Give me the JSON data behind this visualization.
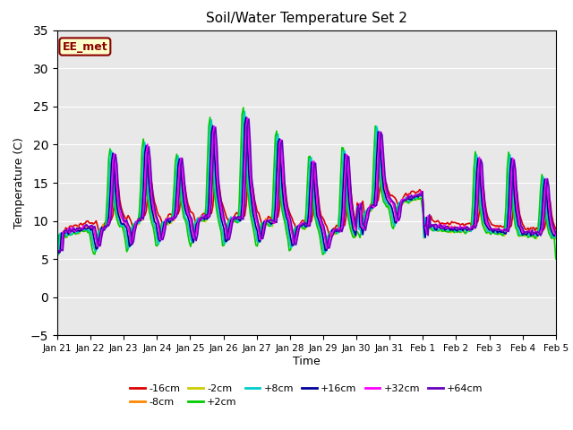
{
  "title": "Soil/Water Temperature Set 2",
  "xlabel": "Time",
  "ylabel": "Temperature (C)",
  "ylim": [
    -5,
    35
  ],
  "bg_color": "#e8e8e8",
  "annotation_text": "EE_met",
  "annotation_fc": "#ffffcc",
  "annotation_ec": "#8b0000",
  "series": [
    {
      "label": "-16cm",
      "color": "#dd0000",
      "lw": 1.2
    },
    {
      "label": "-8cm",
      "color": "#ff8800",
      "lw": 1.2
    },
    {
      "label": "-2cm",
      "color": "#cccc00",
      "lw": 1.2
    },
    {
      "label": "+2cm",
      "color": "#00cc00",
      "lw": 1.2
    },
    {
      "label": "+8cm",
      "color": "#00cccc",
      "lw": 1.2
    },
    {
      "label": "+16cm",
      "color": "#000099",
      "lw": 1.2
    },
    {
      "label": "+32cm",
      "color": "#ff00ff",
      "lw": 1.2
    },
    {
      "label": "+64cm",
      "color": "#6600bb",
      "lw": 1.2
    }
  ],
  "xtick_labels": [
    "Jan 21",
    "Jan 22",
    "Jan 23",
    "Jan 24",
    "Jan 25",
    "Jan 26",
    "Jan 27",
    "Jan 28",
    "Jan 29",
    "Jan 30",
    "Jan 31",
    "Feb 1",
    "Feb 2",
    "Feb 3",
    "Feb 4",
    "Feb 5"
  ],
  "grid_color": "#ffffff",
  "yticks": [
    -5,
    0,
    5,
    10,
    15,
    20,
    25,
    30,
    35
  ]
}
